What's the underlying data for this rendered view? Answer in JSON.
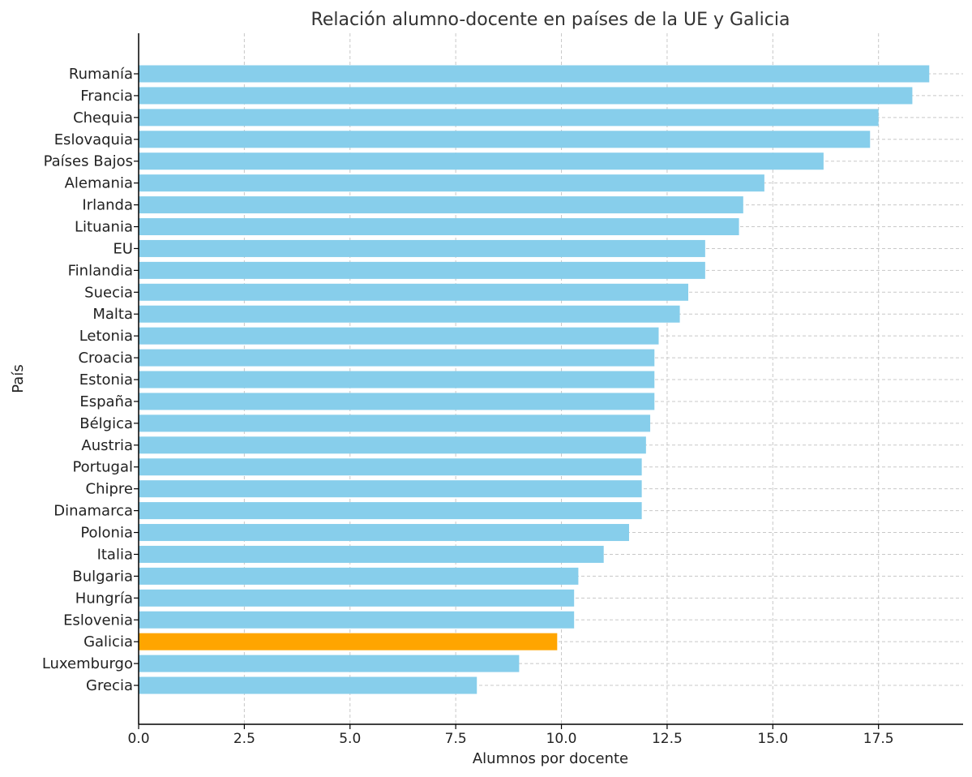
{
  "chart_data": {
    "type": "bar",
    "orientation": "horizontal",
    "title": "Relación alumno-docente en países de la UE y Galicia",
    "xlabel": "Alumnos por docente",
    "ylabel": "País",
    "xlim": [
      0,
      19.5
    ],
    "xticks": [
      0.0,
      2.5,
      5.0,
      7.5,
      10.0,
      12.5,
      15.0,
      17.5
    ],
    "xtick_labels": [
      "0.0",
      "2.5",
      "5.0",
      "7.5",
      "10.0",
      "12.5",
      "15.0",
      "17.5"
    ],
    "grid": true,
    "categories": [
      "Rumanía",
      "Francia",
      "Chequia",
      "Eslovaquia",
      "Países Bajos",
      "Alemania",
      "Irlanda",
      "Lituania",
      "EU",
      "Finlandia",
      "Suecia",
      "Malta",
      "Letonia",
      "Croacia",
      "Estonia",
      "España",
      "Bélgica",
      "Austria",
      "Portugal",
      "Chipre",
      "Dinamarca",
      "Polonia",
      "Italia",
      "Bulgaria",
      "Hungría",
      "Eslovenia",
      "Galicia",
      "Luxemburgo",
      "Grecia"
    ],
    "values": [
      18.7,
      18.3,
      17.5,
      17.3,
      16.2,
      14.8,
      14.3,
      14.2,
      13.4,
      13.4,
      13.0,
      12.8,
      12.3,
      12.2,
      12.2,
      12.2,
      12.1,
      12.0,
      11.9,
      11.9,
      11.9,
      11.6,
      11.0,
      10.4,
      10.3,
      10.3,
      9.9,
      9.0,
      8.0
    ],
    "colors": {
      "default": "#87CEEB",
      "highlight": "#FFA500"
    },
    "highlight_category": "Galicia"
  }
}
